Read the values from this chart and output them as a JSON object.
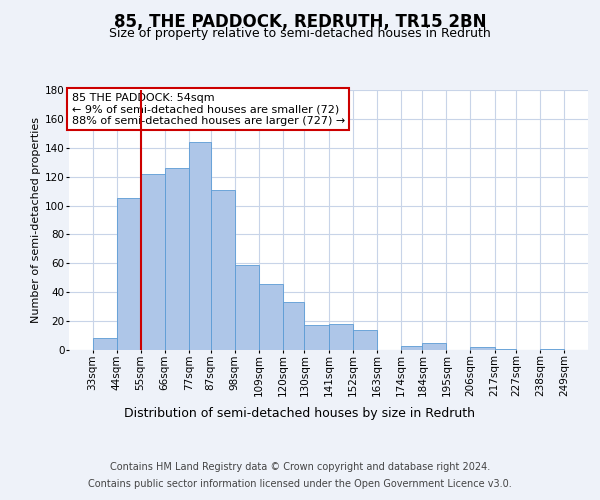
{
  "title": "85, THE PADDOCK, REDRUTH, TR15 2BN",
  "subtitle": "Size of property relative to semi-detached houses in Redruth",
  "xlabel": "Distribution of semi-detached houses by size in Redruth",
  "ylabel": "Number of semi-detached properties",
  "footer_line1": "Contains HM Land Registry data © Crown copyright and database right 2024.",
  "footer_line2": "Contains public sector information licensed under the Open Government Licence v3.0.",
  "annotation_title": "85 THE PADDOCK: 54sqm",
  "annotation_line1": "← 9% of semi-detached houses are smaller (72)",
  "annotation_line2": "88% of semi-detached houses are larger (727) →",
  "property_size": 54,
  "bin_edges": [
    33,
    44,
    55,
    66,
    77,
    87,
    98,
    109,
    120,
    130,
    141,
    152,
    163,
    174,
    184,
    195,
    206,
    217,
    227,
    238,
    249
  ],
  "bar_heights": [
    8,
    105,
    122,
    126,
    144,
    111,
    59,
    46,
    33,
    17,
    18,
    14,
    0,
    3,
    5,
    0,
    2,
    1,
    0,
    1
  ],
  "bar_color": "#aec6e8",
  "bar_edge_color": "#5b9bd5",
  "vline_x": 55,
  "vline_color": "#cc0000",
  "annotation_box_color": "#cc0000",
  "background_color": "#eef2f9",
  "plot_background_color": "#ffffff",
  "grid_color": "#c8d4e8",
  "ylim": [
    0,
    180
  ],
  "yticks": [
    0,
    20,
    40,
    60,
    80,
    100,
    120,
    140,
    160,
    180
  ],
  "title_fontsize": 12,
  "subtitle_fontsize": 9,
  "xlabel_fontsize": 9,
  "ylabel_fontsize": 8,
  "tick_fontsize": 7.5,
  "annotation_fontsize": 8,
  "footer_fontsize": 7
}
